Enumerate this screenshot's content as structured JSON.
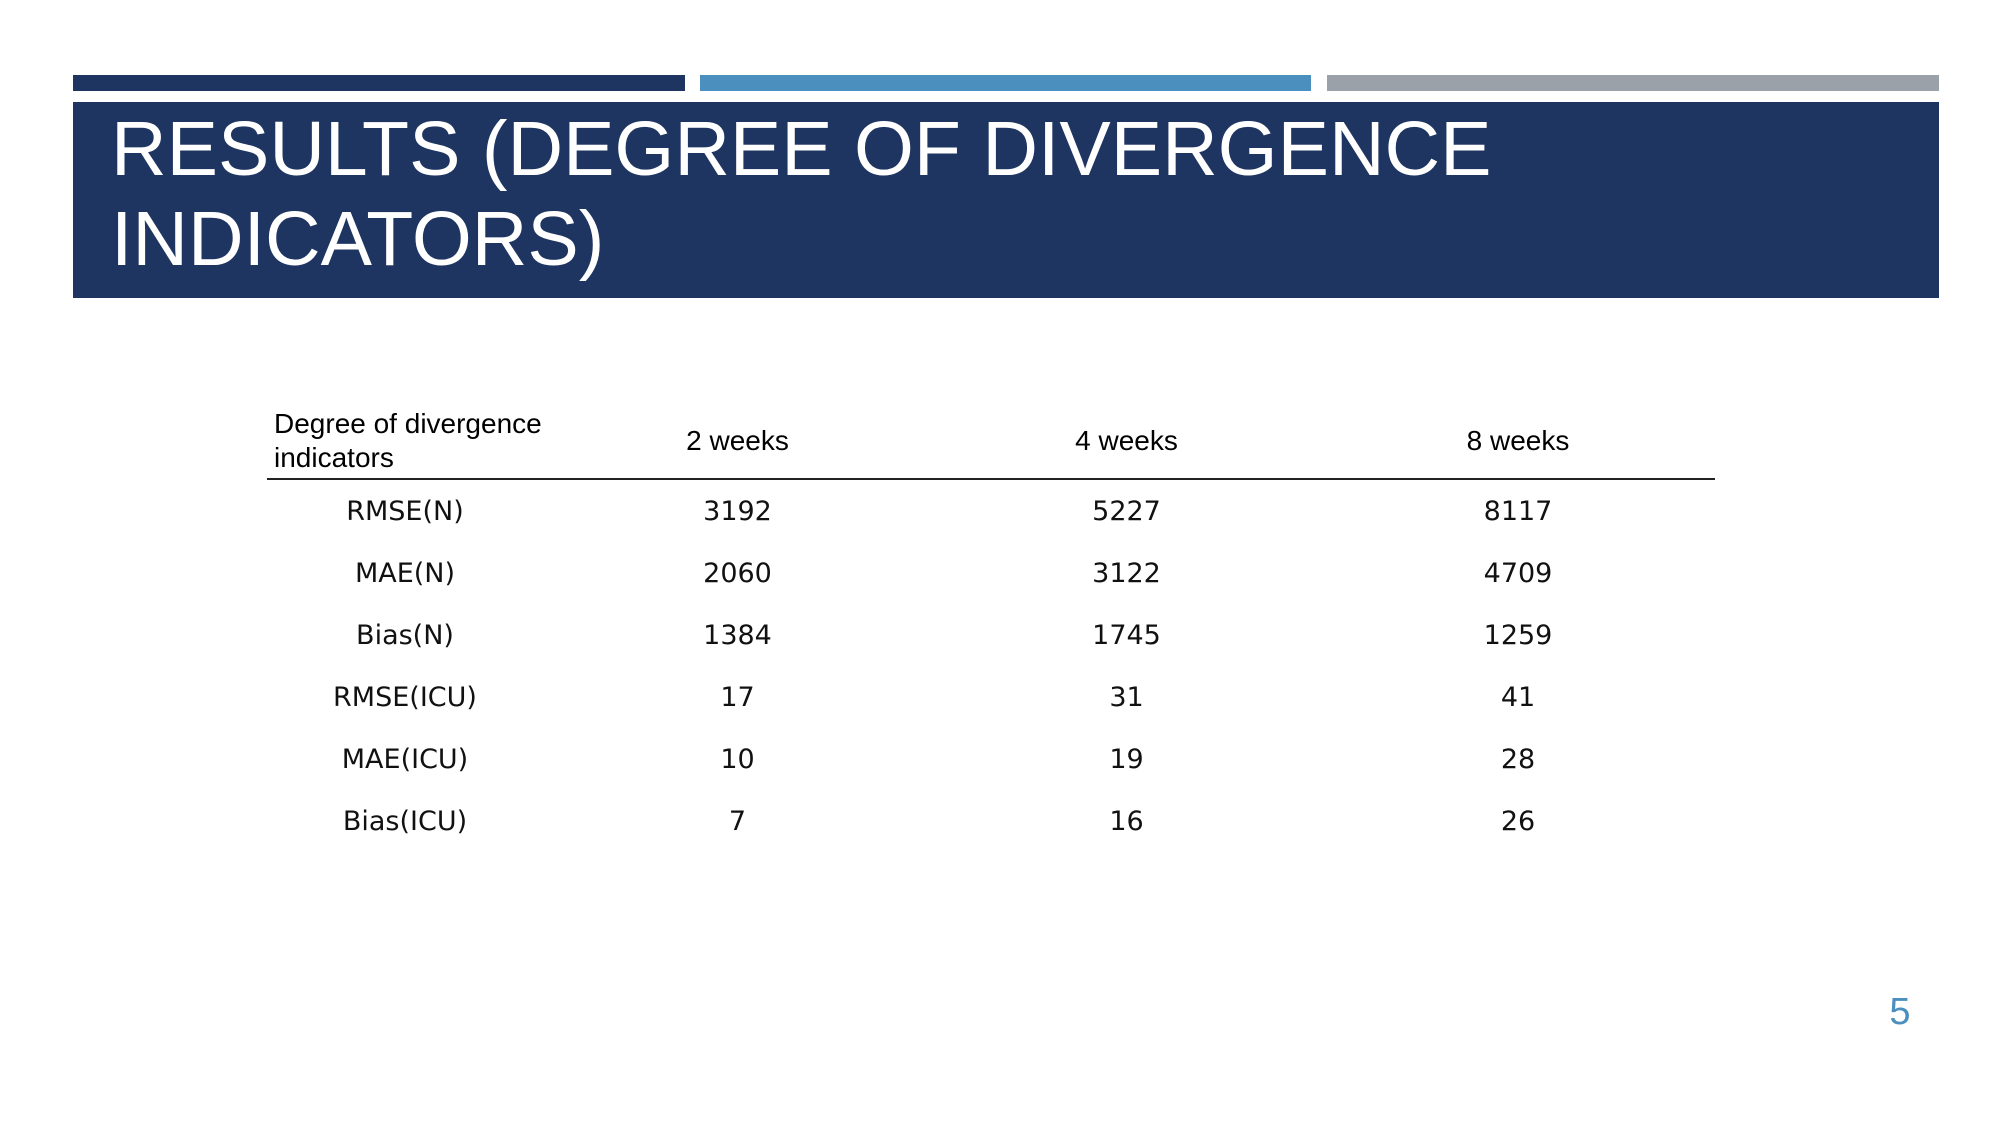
{
  "slide": {
    "title": "RESULTS (DEGREE OF DIVERGENCE INDICATORS)",
    "page_number": "5",
    "colors": {
      "navy": "#1e3461",
      "blue": "#4a8fbd",
      "gray": "#9aa1a9"
    }
  },
  "table": {
    "headers": [
      "Degree of divergence indicators",
      "2 weeks",
      "4 weeks",
      "8 weeks"
    ],
    "rows": [
      [
        "RMSE(N)",
        "3192",
        "5227",
        "8117"
      ],
      [
        "MAE(N)",
        "2060",
        "3122",
        "4709"
      ],
      [
        "Bias(N)",
        "1384",
        "1745",
        "1259"
      ],
      [
        "RMSE(ICU)",
        "17",
        "31",
        "41"
      ],
      [
        "MAE(ICU)",
        "10",
        "19",
        "28"
      ],
      [
        "Bias(ICU)",
        "7",
        "16",
        "26"
      ]
    ]
  }
}
